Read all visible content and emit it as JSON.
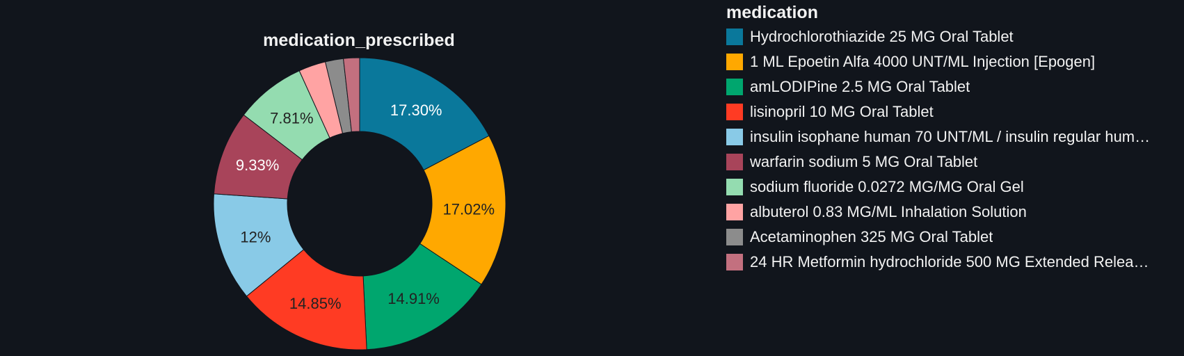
{
  "chart_data": {
    "type": "pie",
    "title": "medication_prescribed",
    "legend_title": "medication",
    "legend_position": "right",
    "hole": true,
    "slices": [
      {
        "label": "Hydrochlorothiazide 25 MG Oral Tablet",
        "display_label": "Hydrochlorothiazide 25 MG Oral Tablet",
        "value": 17.3,
        "text": "17.30%",
        "color": "#0a789b",
        "text_color": "#ffffff"
      },
      {
        "label": "1 ML Epoetin Alfa 4000 UNT/ML Injection [Epogen]",
        "display_label": "1 ML Epoetin Alfa 4000 UNT/ML Injection [Epogen]",
        "value": 17.02,
        "text": "17.02%",
        "color": "#ffa800",
        "text_color": "#222222"
      },
      {
        "label": "amLODIPine 2.5 MG Oral Tablet",
        "display_label": "amLODIPine 2.5 MG Oral Tablet",
        "value": 14.91,
        "text": "14.91%",
        "color": "#00a66e",
        "text_color": "#222222"
      },
      {
        "label": "lisinopril 10 MG Oral Tablet",
        "display_label": "lisinopril 10 MG Oral Tablet",
        "value": 14.85,
        "text": "14.85%",
        "color": "#ff3b23",
        "text_color": "#222222"
      },
      {
        "label": "insulin isophane human 70 UNT/ML / insulin regular human",
        "display_label": "insulin isophane human 70 UNT/ML / insulin regular hum…",
        "value": 12.0,
        "text": "12%",
        "color": "#89cae7",
        "text_color": "#222222"
      },
      {
        "label": "warfarin sodium 5 MG Oral Tablet",
        "display_label": "warfarin sodium 5 MG Oral Tablet",
        "value": 9.33,
        "text": "9.33%",
        "color": "#a8445a",
        "text_color": "#ffffff"
      },
      {
        "label": "sodium fluoride 0.0272 MG/MG Oral Gel",
        "display_label": "sodium fluoride 0.0272 MG/MG Oral Gel",
        "value": 7.81,
        "text": "7.81%",
        "color": "#94dcb0",
        "text_color": "#222222"
      },
      {
        "label": "albuterol 0.83 MG/ML Inhalation Solution",
        "display_label": "albuterol 0.83 MG/ML Inhalation Solution",
        "value": 3.0,
        "text": "",
        "color": "#ffa3a3",
        "text_color": "#222222"
      },
      {
        "label": "Acetaminophen 325 MG Oral Tablet",
        "display_label": "Acetaminophen 325 MG Oral Tablet",
        "value": 2.0,
        "text": "",
        "color": "#8c8c8c",
        "text_color": "#222222"
      },
      {
        "label": "24 HR Metformin hydrochloride 500 MG Extended Release Oral Tablet",
        "display_label": "24 HR Metformin hydrochloride 500 MG Extended Relea…",
        "value": 1.78,
        "text": "",
        "color": "#c3707f",
        "text_color": "#222222"
      }
    ]
  }
}
